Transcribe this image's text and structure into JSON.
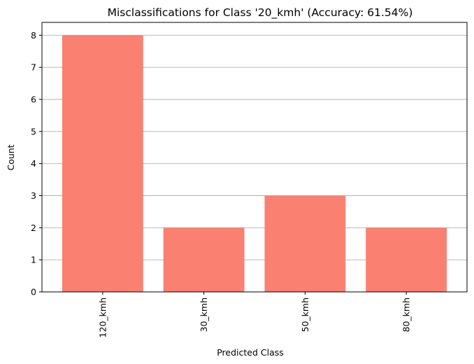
{
  "chart_data": {
    "type": "bar",
    "title": "Misclassifications for Class '20_kmh' (Accuracy: 61.54%)",
    "xlabel": "Predicted Class",
    "ylabel": "Count",
    "categories": [
      "120_kmh",
      "30_kmh",
      "50_kmh",
      "80_kmh"
    ],
    "values": [
      8,
      2,
      3,
      2
    ],
    "ylim": [
      0,
      8.4
    ],
    "yticks": [
      0,
      1,
      2,
      3,
      4,
      5,
      6,
      7,
      8
    ],
    "grid": "y",
    "bar_color": "#fa8072",
    "xtick_rotation": 90
  }
}
